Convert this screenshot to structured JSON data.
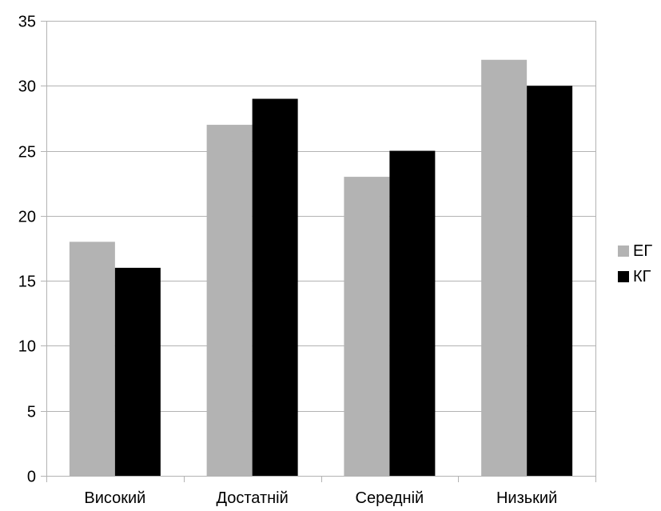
{
  "chart_data": {
    "type": "bar",
    "title": "",
    "xlabel": "",
    "ylabel": "",
    "categories": [
      "Високий",
      "Достатній",
      "Середній",
      "Низький"
    ],
    "series": [
      {
        "name": "ЕГ",
        "values": [
          18,
          27,
          23,
          32
        ],
        "color": "#b3b3b3"
      },
      {
        "name": "КГ",
        "values": [
          16,
          29,
          25,
          30
        ],
        "color": "#000000"
      }
    ],
    "ylim": [
      0,
      35
    ],
    "yticks": [
      "0",
      "5",
      "10",
      "15",
      "20",
      "25",
      "30",
      "35"
    ],
    "grid": true,
    "legend_position": "right"
  }
}
